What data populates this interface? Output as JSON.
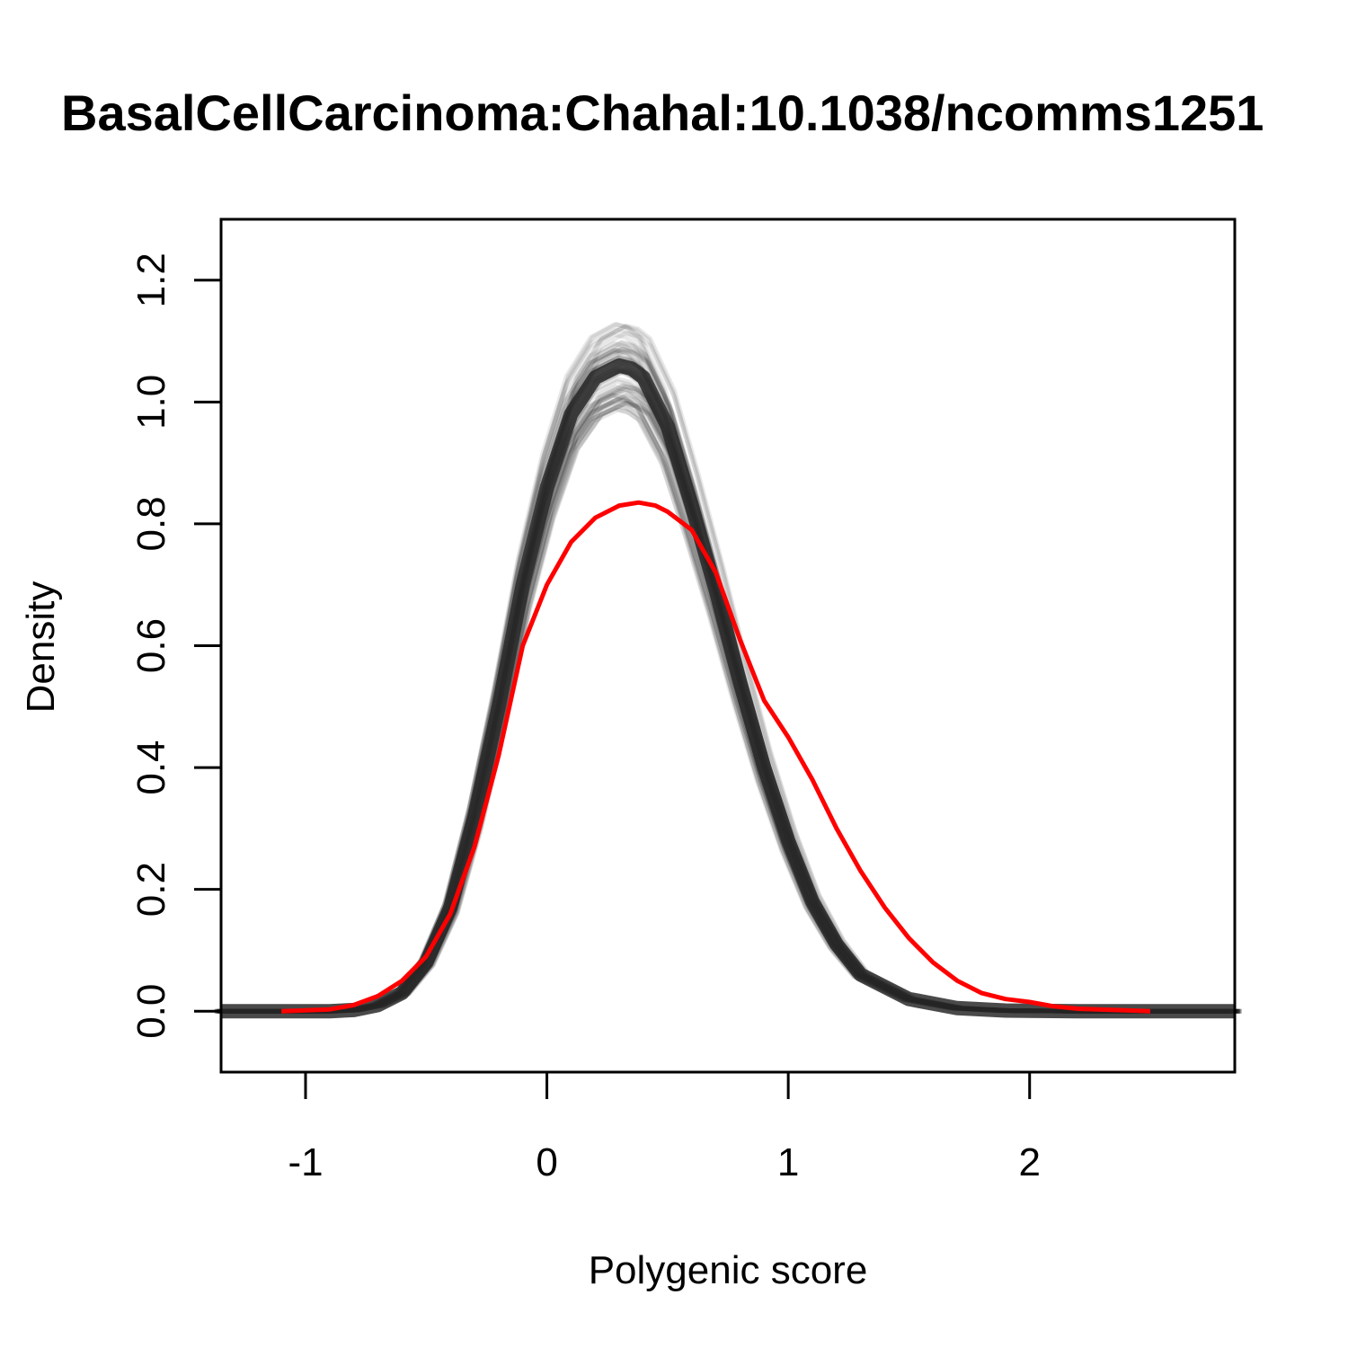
{
  "chart_data": {
    "type": "line",
    "title": "BasalCellCarcinoma:Chahal:10.1038/ncomms1251",
    "xlabel": "Polygenic score",
    "ylabel": "Density",
    "xlim": [
      -1.35,
      2.85
    ],
    "ylim": [
      -0.1,
      1.3
    ],
    "x_ticks": [
      -1,
      0,
      1,
      2
    ],
    "x_tick_labels": [
      "-1",
      "0",
      "1",
      "2"
    ],
    "y_ticks": [
      0.0,
      0.2,
      0.4,
      0.6,
      0.8,
      1.0,
      1.2
    ],
    "y_tick_labels": [
      "0.0",
      "0.2",
      "0.4",
      "0.6",
      "0.8",
      "1.0",
      "1.2"
    ],
    "grid": false,
    "series": [
      {
        "color": "#000000",
        "style": "many semi-transparent overlaid simulated density curves",
        "x": [
          -1.35,
          -1.1,
          -0.9,
          -0.8,
          -0.7,
          -0.6,
          -0.5,
          -0.4,
          -0.3,
          -0.2,
          -0.1,
          0.0,
          0.1,
          0.2,
          0.3,
          0.35,
          0.4,
          0.5,
          0.6,
          0.7,
          0.8,
          0.9,
          1.0,
          1.1,
          1.2,
          1.3,
          1.5,
          1.7,
          1.9,
          2.2,
          2.85
        ],
        "values": [
          0.0,
          0.0,
          0.0,
          0.002,
          0.01,
          0.03,
          0.08,
          0.17,
          0.32,
          0.5,
          0.7,
          0.86,
          0.98,
          1.04,
          1.06,
          1.055,
          1.04,
          0.96,
          0.83,
          0.69,
          0.54,
          0.4,
          0.28,
          0.18,
          0.11,
          0.06,
          0.02,
          0.005,
          0.001,
          0.0,
          0.0
        ]
      },
      {
        "color": "#ff0000",
        "style": "observed density curve",
        "x": [
          -1.1,
          -0.9,
          -0.8,
          -0.7,
          -0.6,
          -0.5,
          -0.4,
          -0.3,
          -0.2,
          -0.1,
          0.0,
          0.1,
          0.2,
          0.3,
          0.38,
          0.45,
          0.5,
          0.6,
          0.7,
          0.8,
          0.9,
          1.0,
          1.1,
          1.2,
          1.3,
          1.4,
          1.5,
          1.6,
          1.7,
          1.8,
          1.9,
          2.0,
          2.1,
          2.2,
          2.5
        ],
        "values": [
          0.0,
          0.003,
          0.01,
          0.025,
          0.05,
          0.09,
          0.16,
          0.27,
          0.42,
          0.6,
          0.7,
          0.77,
          0.81,
          0.83,
          0.835,
          0.83,
          0.82,
          0.79,
          0.72,
          0.61,
          0.51,
          0.45,
          0.38,
          0.3,
          0.23,
          0.17,
          0.12,
          0.08,
          0.05,
          0.03,
          0.02,
          0.015,
          0.008,
          0.004,
          0.0
        ]
      }
    ]
  }
}
